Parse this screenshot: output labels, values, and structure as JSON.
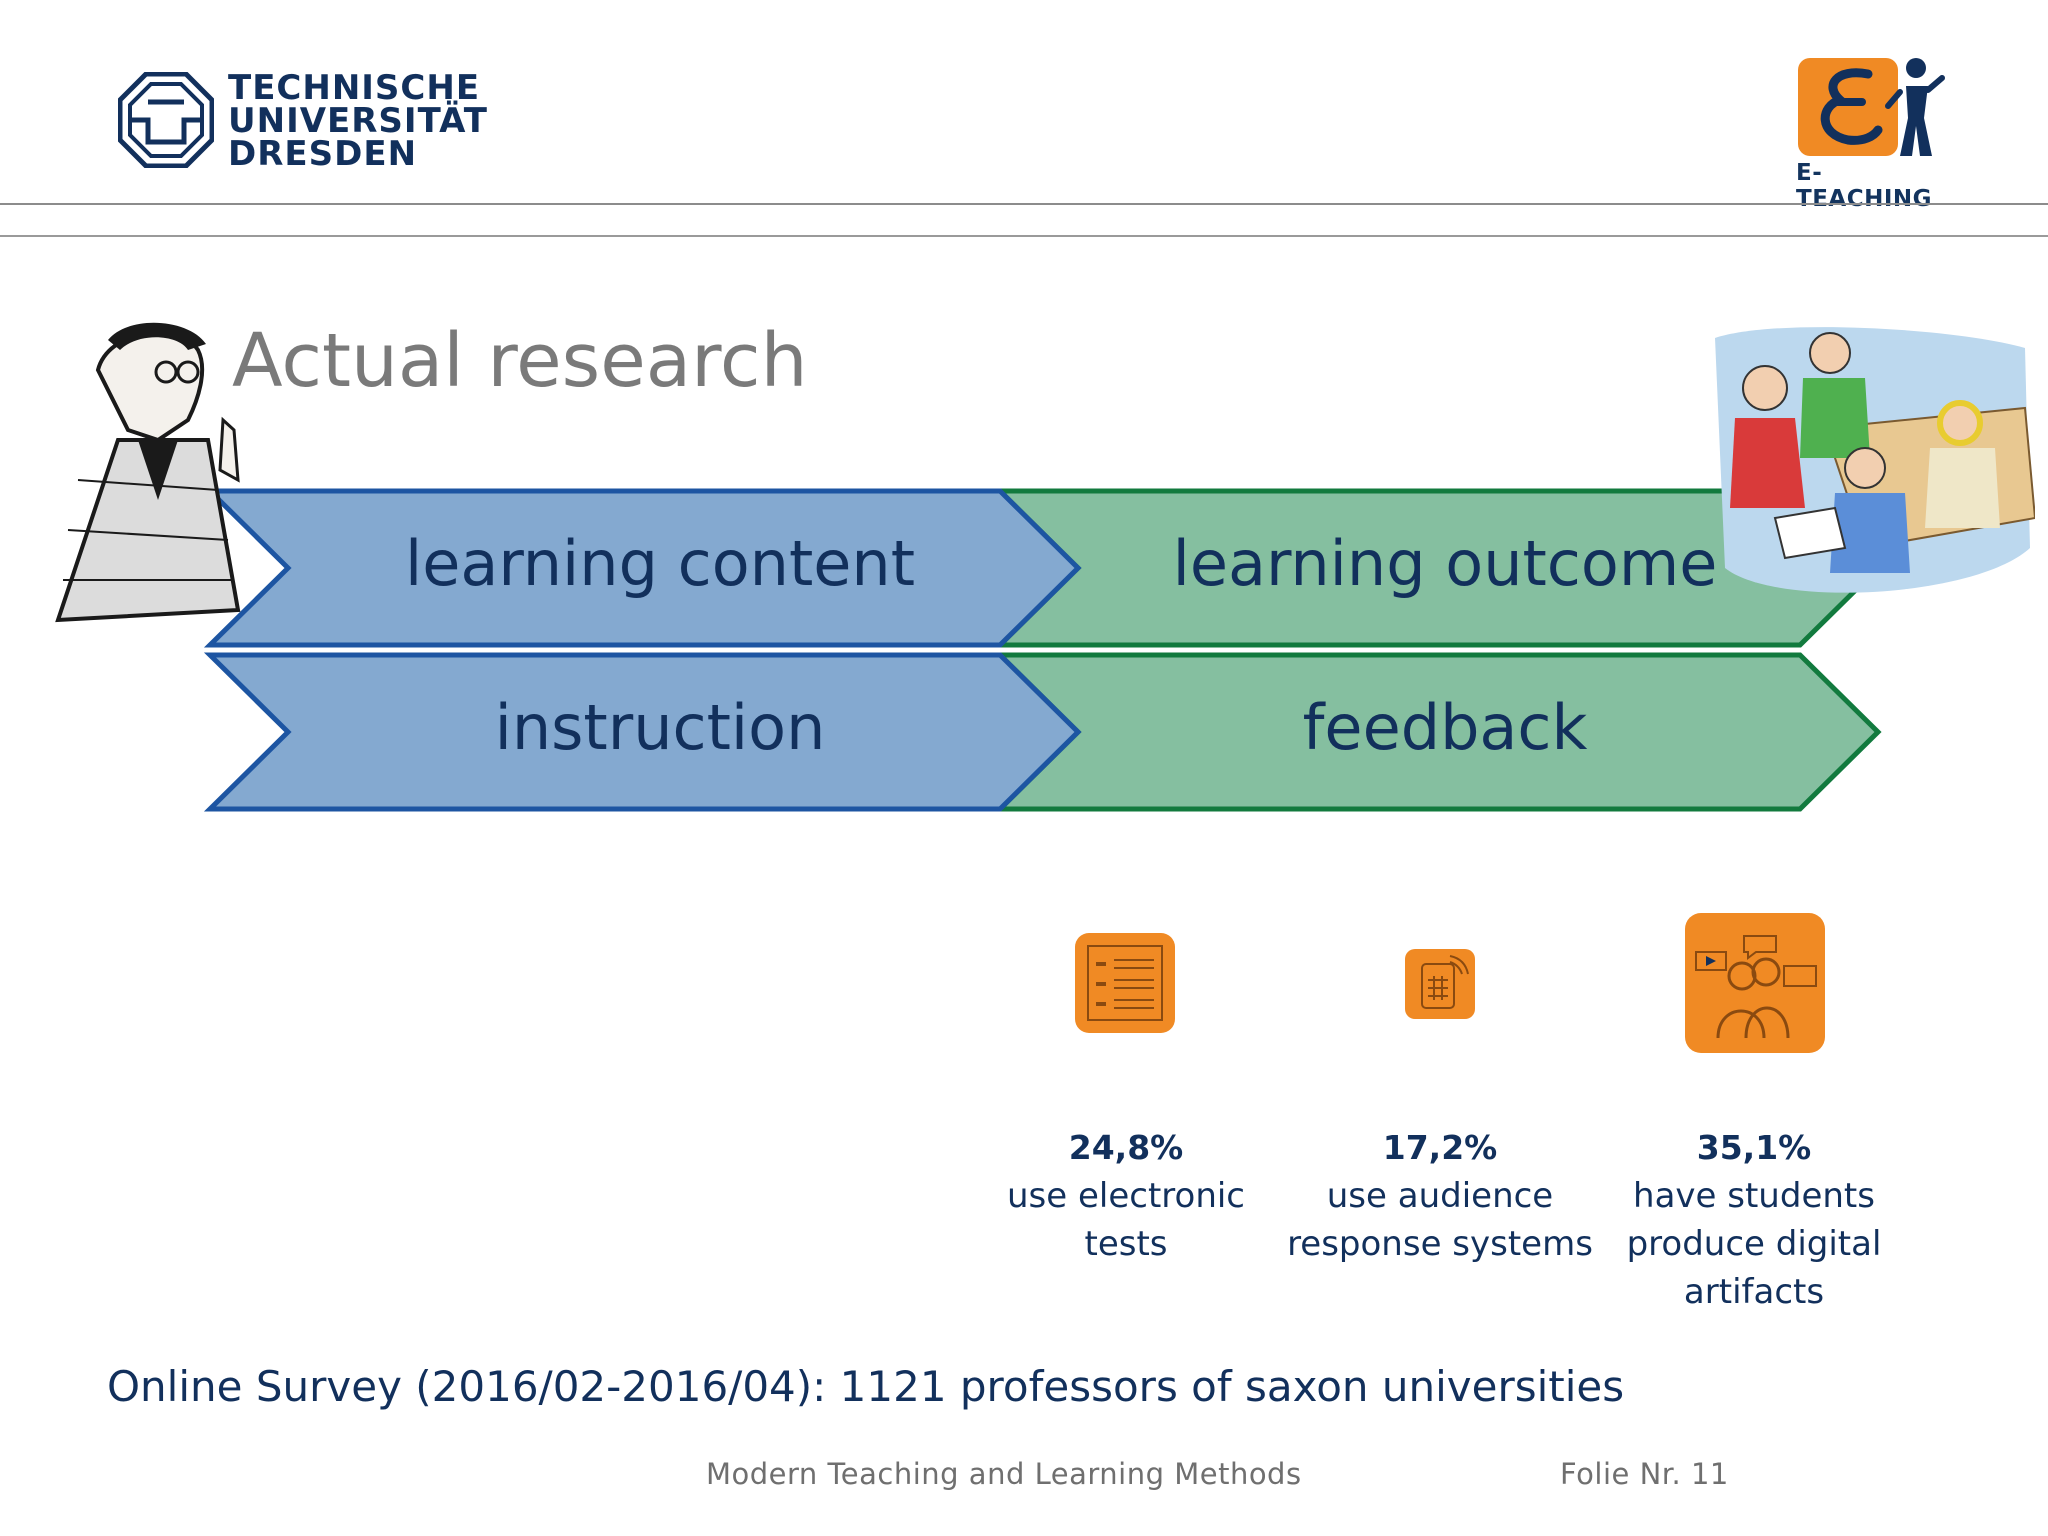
{
  "header": {
    "university": {
      "line1": "TECHNISCHE",
      "line2": "UNIVERSITÄT",
      "line3": "DRESDEN"
    },
    "eteaching_label": "E-TEACHING"
  },
  "title": "Actual research",
  "arrows": {
    "top_left": "learning content",
    "top_right": "learning outcome",
    "bottom_left": "instruction",
    "bottom_right": "feedback"
  },
  "stats": [
    {
      "percent": "24,8%",
      "desc_lines": [
        "use electronic tests"
      ]
    },
    {
      "percent": "17,2%",
      "desc_lines": [
        "use audience",
        "response systems"
      ]
    },
    {
      "percent": "35,1%",
      "desc_lines": [
        "have students",
        "produce digital",
        "artifacts"
      ]
    }
  ],
  "survey_note": "Online Survey (2016/02-2016/04): 1121 professors of saxon universities",
  "footer": {
    "course": "Modern Teaching and Learning Methods",
    "slide_number": "Folie Nr. 11"
  },
  "colors": {
    "blue_fill": "#84a9d0",
    "blue_stroke": "#1d55a2",
    "green_fill": "#85bfa0",
    "green_stroke": "#127a3e",
    "orange": "#f08a24",
    "navy": "#12305c"
  },
  "icons": [
    "tud-logo-icon",
    "e-teaching-logo-icon",
    "professor-illustration-icon",
    "students-illustration-icon",
    "electronic-test-icon",
    "audience-response-icon",
    "digital-artifacts-icon"
  ]
}
